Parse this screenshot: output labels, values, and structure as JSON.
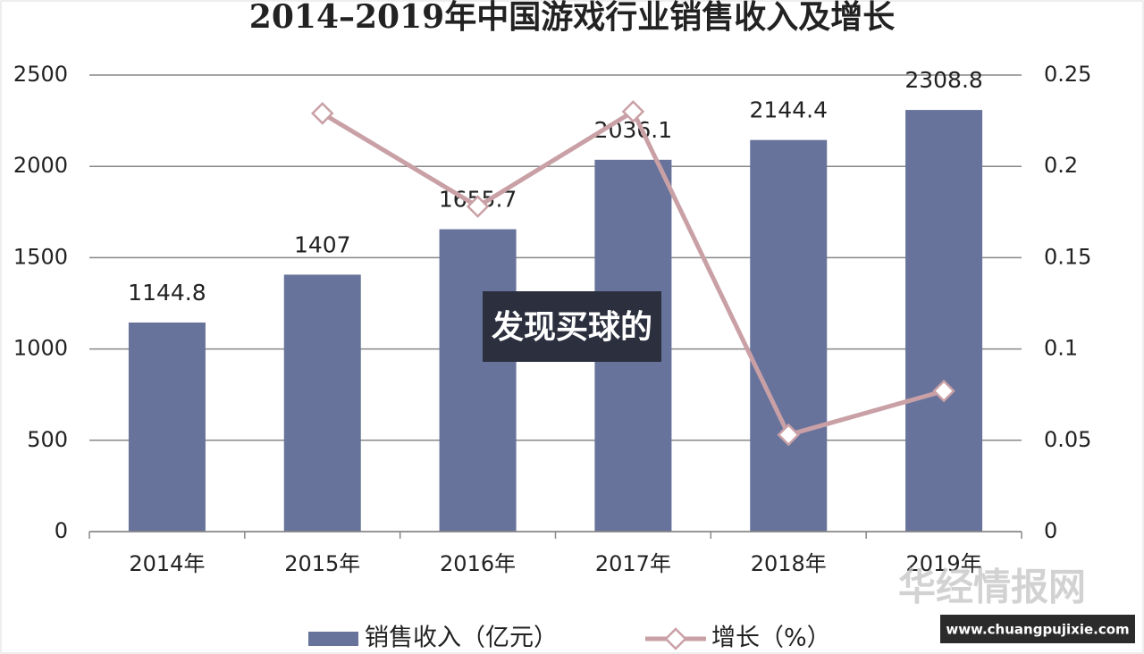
{
  "chart_data": {
    "type": "bar+line",
    "title": "2014–2019年中国游戏行业销售收入及增长",
    "categories": [
      "2014年",
      "2015年",
      "2016年",
      "2017年",
      "2018年",
      "2019年"
    ],
    "series": [
      {
        "name": "销售收入（亿元）",
        "type": "bar",
        "color": "#67739b",
        "values": [
          1144.8,
          1407,
          1655.7,
          2036.1,
          2144.4,
          2308.8
        ]
      },
      {
        "name": "增长（%）",
        "type": "line",
        "axis": "y2",
        "color": "#c9a0a6",
        "values": [
          null,
          0.229,
          0.178,
          0.23,
          0.053,
          0.077
        ]
      }
    ],
    "ylim": [
      0,
      2500
    ],
    "yticks": [
      0,
      500,
      1000,
      1500,
      2000,
      2500
    ],
    "y2lim": [
      0,
      0.25
    ],
    "y2ticks": [
      0,
      0.05,
      0.1,
      0.15,
      0.2,
      0.25
    ],
    "grid": true,
    "legend": "bottom"
  },
  "overlay": {
    "caption": "发现买球的",
    "watermark": "华经情报网",
    "url": "www.chuangpujixie.com"
  }
}
